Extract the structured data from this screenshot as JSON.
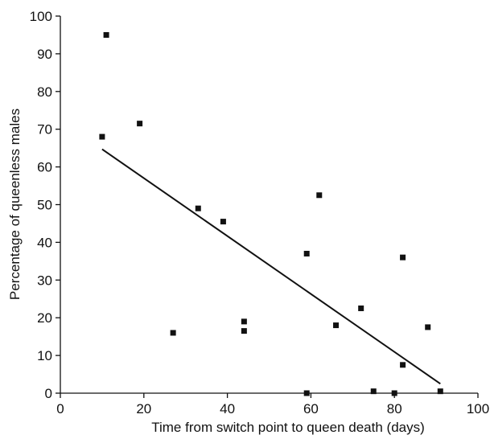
{
  "chart_data": {
    "type": "scatter",
    "title": "",
    "xlabel": "Time from switch point to queen death (days)",
    "ylabel": "Percentage of queenless males",
    "xlim": [
      0,
      100
    ],
    "ylim": [
      0,
      100
    ],
    "x_ticks": [
      0,
      20,
      40,
      60,
      80,
      100
    ],
    "y_ticks": [
      0,
      10,
      20,
      30,
      40,
      50,
      60,
      70,
      80,
      90,
      100
    ],
    "grid": false,
    "legend": "none",
    "series": [
      {
        "points": [
          {
            "x": 10,
            "y": 68
          },
          {
            "x": 11,
            "y": 95
          },
          {
            "x": 19,
            "y": 71.5
          },
          {
            "x": 27,
            "y": 16
          },
          {
            "x": 33,
            "y": 49
          },
          {
            "x": 39,
            "y": 45.5
          },
          {
            "x": 44,
            "y": 19
          },
          {
            "x": 44,
            "y": 16.5
          },
          {
            "x": 59,
            "y": 37
          },
          {
            "x": 59,
            "y": 0
          },
          {
            "x": 62,
            "y": 52.5
          },
          {
            "x": 66,
            "y": 18
          },
          {
            "x": 72,
            "y": 22.5
          },
          {
            "x": 75,
            "y": 0.5
          },
          {
            "x": 80,
            "y": 0
          },
          {
            "x": 82,
            "y": 36
          },
          {
            "x": 82,
            "y": 7.5
          },
          {
            "x": 88,
            "y": 17.5
          },
          {
            "x": 91,
            "y": 0.5
          }
        ]
      }
    ],
    "trendline": {
      "x1": 10,
      "y1": 64.7,
      "x2": 91,
      "y2": 2.5
    },
    "colors": {
      "marker": "#111111",
      "line": "#111111",
      "axis": "#111111"
    }
  }
}
